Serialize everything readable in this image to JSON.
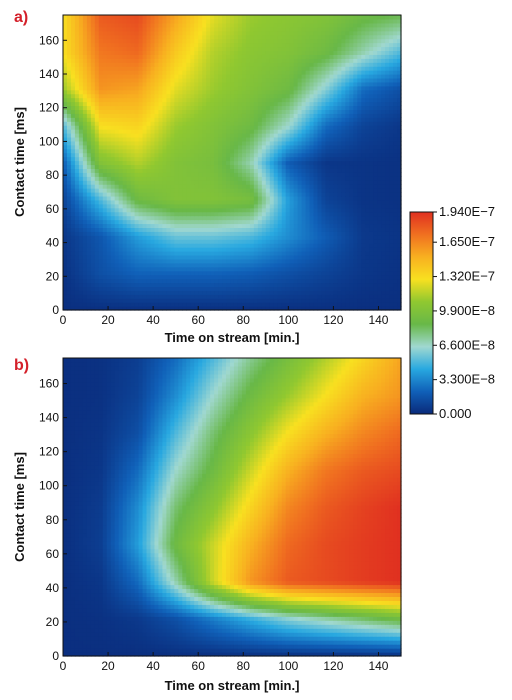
{
  "chart_data": [
    {
      "type": "heatmap",
      "panel_label": "a)",
      "xlabel": "Time on stream [min.]",
      "ylabel": "Contact time [ms]",
      "xlim": [
        0,
        150
      ],
      "ylim": [
        0,
        175
      ],
      "xticks": [
        0,
        20,
        40,
        60,
        80,
        100,
        120,
        140
      ],
      "yticks": [
        0,
        20,
        40,
        60,
        80,
        100,
        120,
        140,
        160
      ],
      "zlim": [
        0,
        1.94e-07
      ],
      "grid": false,
      "values_z": [
        [
          2e-09,
          2e-09,
          2e-09,
          2e-09,
          2e-09,
          2e-09,
          2e-09,
          2e-09,
          2e-09,
          2e-09
        ],
        [
          3e-09,
          1.5e-08,
          2.2e-08,
          2.2e-08,
          2.2e-08,
          2e-08,
          1.5e-08,
          1e-08,
          5e-09,
          3e-09
        ],
        [
          5e-09,
          1.8e-08,
          4e-08,
          5.5e-08,
          5.5e-08,
          5e-08,
          3.5e-08,
          2e-08,
          6e-09,
          4e-09
        ],
        [
          1e-08,
          5e-08,
          9e-08,
          1e-07,
          1e-07,
          9.5e-08,
          4e-08,
          1e-08,
          4e-09,
          3e-09
        ],
        [
          2e-08,
          1e-07,
          1.15e-07,
          1e-07,
          9.5e-08,
          7e-08,
          2e-08,
          5e-09,
          4e-09,
          3e-09
        ],
        [
          5e-08,
          1.3e-07,
          1.35e-07,
          1.1e-07,
          1e-07,
          9e-08,
          6.5e-08,
          2.5e-08,
          1e-08,
          5e-09
        ],
        [
          1.1e-07,
          1.6e-07,
          1.55e-07,
          1.25e-07,
          1.1e-07,
          1e-07,
          9e-08,
          6e-08,
          2.5e-08,
          1.5e-08
        ],
        [
          1.3e-07,
          1.7e-07,
          1.75e-07,
          1.4e-07,
          1.15e-07,
          1.05e-07,
          1e-07,
          9e-08,
          7e-08,
          5e-08
        ],
        [
          1.3e-07,
          1.8e-07,
          1.85e-07,
          1.55e-07,
          1.25e-07,
          1.1e-07,
          1.05e-07,
          1e-07,
          9e-08,
          8.5e-08
        ]
      ]
    },
    {
      "type": "heatmap",
      "panel_label": "b)",
      "xlabel": "Time on stream [min.]",
      "ylabel": "Contact time [ms]",
      "xlim": [
        0,
        150
      ],
      "ylim": [
        0,
        175
      ],
      "xticks": [
        0,
        20,
        40,
        60,
        80,
        100,
        120,
        140
      ],
      "yticks": [
        0,
        20,
        40,
        60,
        80,
        100,
        120,
        140,
        160
      ],
      "zlim": [
        0,
        1.94e-07
      ],
      "grid": false,
      "values_z": [
        [
          2e-09,
          2e-09,
          2e-09,
          2e-09,
          2e-09,
          2e-09,
          2e-09,
          2e-09,
          2e-09,
          2e-09
        ],
        [
          2e-09,
          3e-09,
          6e-09,
          1.5e-08,
          3e-08,
          4.5e-08,
          6e-08,
          7e-08,
          8e-08,
          9e-08
        ],
        [
          2e-09,
          5e-09,
          2.5e-08,
          7e-08,
          1.2e-07,
          1.6e-07,
          1.8e-07,
          1.85e-07,
          1.9e-07,
          1.94e-07
        ],
        [
          2e-09,
          8e-09,
          4e-08,
          9e-08,
          1.2e-07,
          1.5e-07,
          1.75e-07,
          1.85e-07,
          1.9e-07,
          1.94e-07
        ],
        [
          2e-09,
          7e-09,
          3.5e-08,
          8e-08,
          1.05e-07,
          1.35e-07,
          1.65e-07,
          1.8e-07,
          1.88e-07,
          1.94e-07
        ],
        [
          2e-09,
          5e-09,
          2.5e-08,
          6.5e-08,
          9e-08,
          1.2e-07,
          1.5e-07,
          1.7e-07,
          1.8e-07,
          1.85e-07
        ],
        [
          2e-09,
          4e-09,
          1.5e-08,
          5e-08,
          8e-08,
          1.05e-07,
          1.3e-07,
          1.5e-07,
          1.65e-07,
          1.75e-07
        ],
        [
          2e-09,
          3e-09,
          1e-08,
          3.5e-08,
          6.5e-08,
          9e-08,
          1.1e-07,
          1.3e-07,
          1.5e-07,
          1.6e-07
        ],
        [
          2e-09,
          3e-09,
          8e-09,
          2.5e-08,
          5e-08,
          7.5e-08,
          9.5e-08,
          1.15e-07,
          1.35e-07,
          1.55e-07
        ]
      ]
    }
  ],
  "colorbar": {
    "min": 0,
    "max": 1.94e-07,
    "ticks": [
      {
        "value": 1.94e-07,
        "label": "1.940E−7"
      },
      {
        "value": 1.65e-07,
        "label": "1.650E−7"
      },
      {
        "value": 1.32e-07,
        "label": "1.320E−7"
      },
      {
        "value": 9.9e-08,
        "label": "9.900E−8"
      },
      {
        "value": 6.6e-08,
        "label": "6.600E−8"
      },
      {
        "value": 3.3e-08,
        "label": "3.300E−8"
      },
      {
        "value": 0,
        "label": "0.000"
      }
    ],
    "colors": [
      "#0a2a7a",
      "#1060b8",
      "#28a8e0",
      "#a0d8d0",
      "#68b848",
      "#90c830",
      "#f8e020",
      "#f8b020",
      "#f07020",
      "#e03020"
    ]
  }
}
